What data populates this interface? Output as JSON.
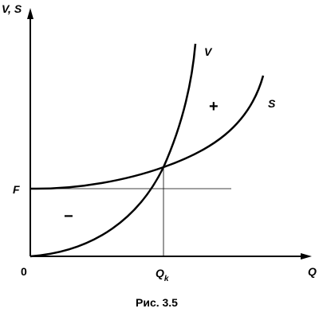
{
  "axes": {
    "y_label": "V, S",
    "x_label": "Q",
    "origin": "0"
  },
  "levels": {
    "f": "F",
    "q_k": {
      "main": "Q",
      "sub": "k"
    }
  },
  "curves": {
    "v": "V",
    "s": "S"
  },
  "regions": {
    "profit": "+",
    "loss": "−"
  },
  "caption": "Рис. 3.5"
}
